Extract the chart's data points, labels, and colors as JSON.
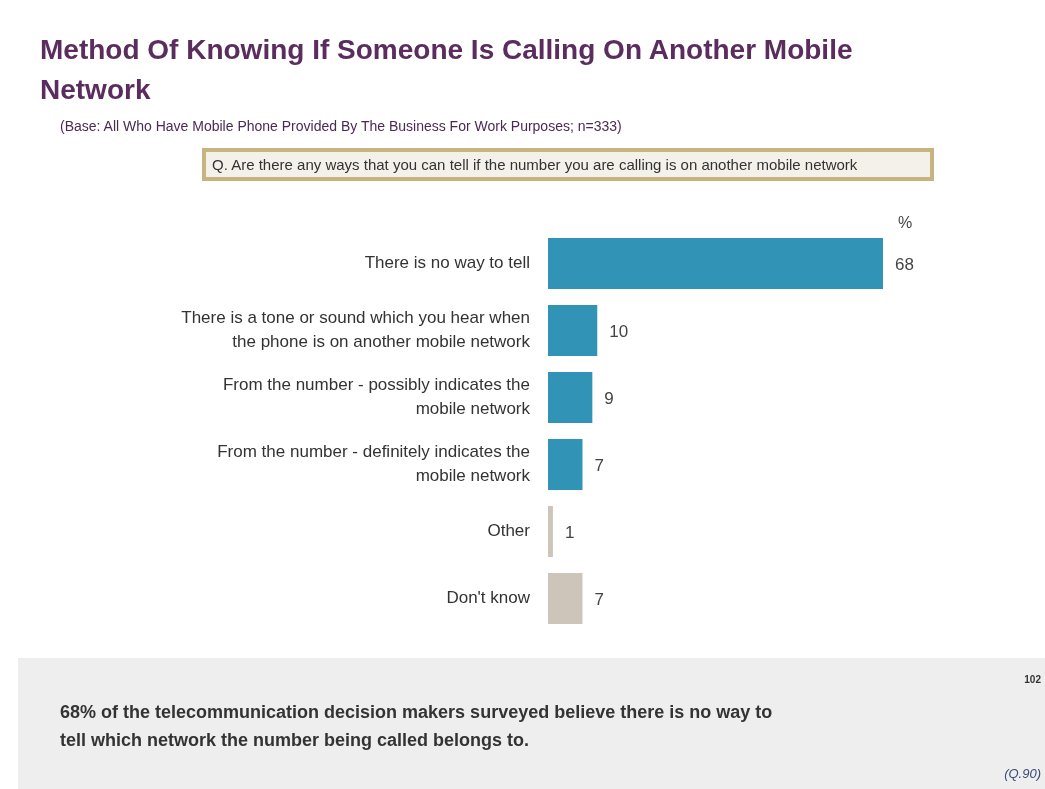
{
  "chart_data": {
    "type": "bar",
    "orientation": "horizontal",
    "title": "Method Of Knowing If Someone Is Calling On Another Mobile Network",
    "subtitle": "(Base: All Who Have Mobile Phone Provided By The Business For Work Purposes; n=333)",
    "categories": [
      "There is no way to tell",
      "There is a tone or sound which you hear when the phone is on another mobile network",
      "From the number - possibly indicates the mobile network",
      "From the number - definitely indicates the mobile network",
      "Other",
      "Don't know"
    ],
    "values": [
      68,
      10,
      9,
      7,
      1,
      7
    ],
    "colors": [
      "#3193b5",
      "#3193b5",
      "#3193b5",
      "#3193b5",
      "#cdc5b9",
      "#cdc5b9"
    ],
    "data_labels": true,
    "annotations": [
      "Q. Are there any ways that you can tell if the number you are calling is on another mobile network",
      "%",
      "68% of the telecommunication decision makers surveyed believe there is no way to tell which network the number being called belongs to.",
      "102",
      "(Q.90)"
    ]
  }
}
